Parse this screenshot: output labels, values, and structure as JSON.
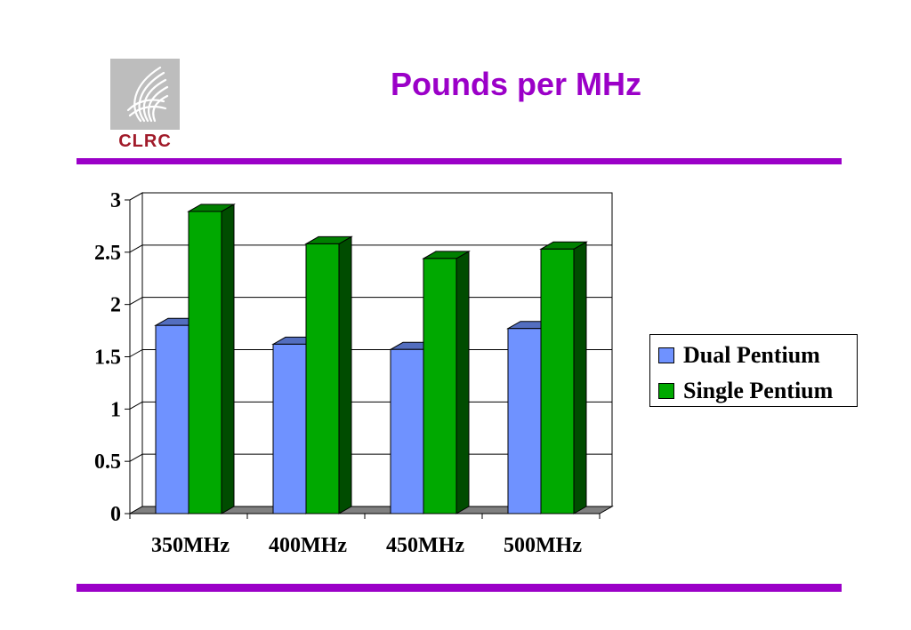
{
  "logo": {
    "text": "CLRC",
    "color": "#a11b2a"
  },
  "title": "Pounds per MHz",
  "colors": {
    "accent": "#9b00c8"
  },
  "chart_data": {
    "type": "bar",
    "categories": [
      "350MHz",
      "400MHz",
      "450MHz",
      "500MHz"
    ],
    "series": [
      {
        "name": "Dual Pentium",
        "values": [
          1.8,
          1.62,
          1.57,
          1.77
        ],
        "color": "#6f92ff"
      },
      {
        "name": "Single Pentium",
        "values": [
          2.89,
          2.58,
          2.44,
          2.53
        ],
        "color": "#00a900"
      }
    ],
    "ylim": [
      0,
      3
    ],
    "yticks": [
      "0",
      "0.5",
      "1",
      "1.5",
      "2",
      "2.5",
      "3"
    ],
    "title": "",
    "xlabel": "",
    "ylabel": "",
    "grid": true,
    "legend": "right",
    "style": "3d"
  }
}
